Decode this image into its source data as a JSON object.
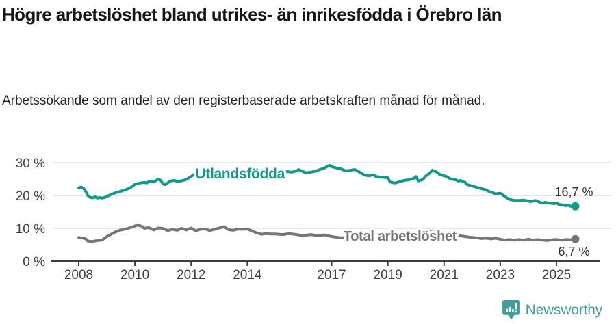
{
  "header": {
    "title": "Högre arbetslöshet bland utrikes- än inrikesfödda i Örebro län",
    "subtitle": "Arbetssökande som andel av den registerbaserade arbetskraften månad för månad."
  },
  "footer": {
    "brand": "Newsworthy"
  },
  "colors": {
    "accent_teal": "#10998b",
    "series_gray": "#74747b",
    "gridline": "#d9d9d9",
    "axis": "#3f3f3f",
    "tick_text": "#3f3f3f",
    "end_label_text": "#2e2e2e",
    "logo_teal": "#3f9e99"
  },
  "chart_data": {
    "type": "line",
    "title": "Högre arbetslöshet bland utrikes- än inrikesfödda i Örebro län",
    "subtitle": "Arbetssökande som andel av den registerbaserade arbetskraften månad för månad.",
    "xlabel": "",
    "ylabel": "",
    "xlim": [
      2007.05,
      2026.5
    ],
    "ylim": [
      0,
      30
    ],
    "grid": "horizontal",
    "legend_position": "inline-labels",
    "x_ticks": [
      2008,
      2010,
      2012,
      2014,
      2017,
      2019,
      2021,
      2023,
      2025
    ],
    "y_ticks": [
      0,
      10,
      20,
      30
    ],
    "y_tick_suffix": " %",
    "series": [
      {
        "name": "Utlandsfödda",
        "color": "#10998b",
        "end_label": "16,7 %",
        "end_value": 16.7,
        "label_pos": [
          2012.15,
          25.2
        ],
        "label_size": 21,
        "end_label_offset": [
          26,
          -15
        ],
        "points": [
          [
            2008.0,
            22.3
          ],
          [
            2008.08,
            22.6
          ],
          [
            2008.17,
            22.2
          ],
          [
            2008.25,
            21.2
          ],
          [
            2008.33,
            19.9
          ],
          [
            2008.42,
            19.4
          ],
          [
            2008.5,
            19.3
          ],
          [
            2008.58,
            19.6
          ],
          [
            2008.67,
            19.2
          ],
          [
            2008.75,
            19.4
          ],
          [
            2008.83,
            19.2
          ],
          [
            2008.92,
            19.4
          ],
          [
            2009.0,
            19.7
          ],
          [
            2009.17,
            20.4
          ],
          [
            2009.33,
            20.9
          ],
          [
            2009.5,
            21.3
          ],
          [
            2009.67,
            21.8
          ],
          [
            2009.83,
            22.3
          ],
          [
            2010.0,
            23.4
          ],
          [
            2010.17,
            23.8
          ],
          [
            2010.33,
            24.0
          ],
          [
            2010.42,
            23.8
          ],
          [
            2010.5,
            24.3
          ],
          [
            2010.67,
            24.1
          ],
          [
            2010.83,
            25.0
          ],
          [
            2010.92,
            24.6
          ],
          [
            2011.0,
            23.5
          ],
          [
            2011.08,
            23.3
          ],
          [
            2011.25,
            24.4
          ],
          [
            2011.42,
            24.6
          ],
          [
            2011.5,
            24.3
          ],
          [
            2011.67,
            24.5
          ],
          [
            2011.83,
            24.9
          ],
          [
            2011.92,
            25.4
          ],
          [
            2012.0,
            25.8
          ],
          [
            2012.08,
            26.3
          ],
          [
            2012.25,
            25.9
          ],
          [
            2012.42,
            26.2
          ],
          [
            2012.58,
            26.0
          ],
          [
            2012.75,
            26.3
          ],
          [
            2012.92,
            26.5
          ],
          [
            2013.08,
            26.3
          ],
          [
            2013.25,
            26.6
          ],
          [
            2013.42,
            26.9
          ],
          [
            2013.58,
            26.7
          ],
          [
            2013.75,
            27.0
          ],
          [
            2013.92,
            26.8
          ],
          [
            2014.08,
            27.0
          ],
          [
            2014.25,
            26.8
          ],
          [
            2014.42,
            27.1
          ],
          [
            2014.58,
            26.9
          ],
          [
            2014.75,
            27.2
          ],
          [
            2014.92,
            27.0
          ],
          [
            2015.08,
            27.2
          ],
          [
            2015.25,
            27.0
          ],
          [
            2015.42,
            27.3
          ],
          [
            2015.58,
            27.1
          ],
          [
            2015.75,
            27.5
          ],
          [
            2015.83,
            27.9
          ],
          [
            2016.0,
            27.2
          ],
          [
            2016.08,
            26.9
          ],
          [
            2016.25,
            27.1
          ],
          [
            2016.42,
            27.4
          ],
          [
            2016.58,
            27.9
          ],
          [
            2016.75,
            28.4
          ],
          [
            2016.92,
            29.2
          ],
          [
            2017.0,
            28.8
          ],
          [
            2017.17,
            28.4
          ],
          [
            2017.33,
            28.1
          ],
          [
            2017.5,
            27.5
          ],
          [
            2017.67,
            27.7
          ],
          [
            2017.83,
            27.9
          ],
          [
            2018.0,
            27.1
          ],
          [
            2018.17,
            26.2
          ],
          [
            2018.33,
            26.0
          ],
          [
            2018.5,
            26.3
          ],
          [
            2018.58,
            25.8
          ],
          [
            2018.75,
            25.6
          ],
          [
            2018.92,
            25.5
          ],
          [
            2019.0,
            25.4
          ],
          [
            2019.08,
            24.1
          ],
          [
            2019.25,
            23.8
          ],
          [
            2019.42,
            24.2
          ],
          [
            2019.58,
            24.6
          ],
          [
            2019.75,
            24.8
          ],
          [
            2019.92,
            25.2
          ],
          [
            2020.0,
            25.8
          ],
          [
            2020.08,
            24.4
          ],
          [
            2020.25,
            24.9
          ],
          [
            2020.33,
            25.8
          ],
          [
            2020.5,
            26.9
          ],
          [
            2020.58,
            27.7
          ],
          [
            2020.75,
            27.1
          ],
          [
            2020.83,
            26.5
          ],
          [
            2021.0,
            26.0
          ],
          [
            2021.08,
            25.8
          ],
          [
            2021.25,
            25.0
          ],
          [
            2021.42,
            24.8
          ],
          [
            2021.5,
            24.4
          ],
          [
            2021.58,
            24.6
          ],
          [
            2021.75,
            24.0
          ],
          [
            2021.83,
            23.3
          ],
          [
            2022.0,
            22.9
          ],
          [
            2022.08,
            22.7
          ],
          [
            2022.25,
            22.3
          ],
          [
            2022.42,
            21.9
          ],
          [
            2022.5,
            21.7
          ],
          [
            2022.58,
            21.3
          ],
          [
            2022.75,
            20.8
          ],
          [
            2022.83,
            20.5
          ],
          [
            2022.92,
            20.6
          ],
          [
            2023.0,
            20.7
          ],
          [
            2023.17,
            19.6
          ],
          [
            2023.33,
            18.8
          ],
          [
            2023.5,
            18.5
          ],
          [
            2023.67,
            18.5
          ],
          [
            2023.83,
            18.6
          ],
          [
            2024.0,
            18.3
          ],
          [
            2024.08,
            18.1
          ],
          [
            2024.25,
            18.5
          ],
          [
            2024.42,
            17.9
          ],
          [
            2024.5,
            17.7
          ],
          [
            2024.58,
            17.9
          ],
          [
            2024.75,
            17.7
          ],
          [
            2024.92,
            17.5
          ],
          [
            2025.0,
            17.7
          ],
          [
            2025.08,
            17.3
          ],
          [
            2025.25,
            17.1
          ],
          [
            2025.33,
            16.9
          ],
          [
            2025.42,
            17.1
          ],
          [
            2025.5,
            16.7
          ],
          [
            2025.67,
            16.7
          ]
        ]
      },
      {
        "name": "Total arbetslöshet",
        "color": "#74747b",
        "end_label": "6,7 %",
        "end_value": 6.7,
        "label_pos": [
          2017.42,
          6.25
        ],
        "label_size": 20,
        "end_label_offset": [
          21,
          24
        ],
        "points": [
          [
            2008.0,
            7.2
          ],
          [
            2008.08,
            7.1
          ],
          [
            2008.17,
            7.0
          ],
          [
            2008.25,
            6.8
          ],
          [
            2008.33,
            6.1
          ],
          [
            2008.5,
            6.0
          ],
          [
            2008.67,
            6.3
          ],
          [
            2008.83,
            6.4
          ],
          [
            2009.0,
            7.5
          ],
          [
            2009.17,
            8.3
          ],
          [
            2009.33,
            9.0
          ],
          [
            2009.5,
            9.5
          ],
          [
            2009.67,
            9.8
          ],
          [
            2009.83,
            10.2
          ],
          [
            2010.0,
            10.7
          ],
          [
            2010.08,
            11.0
          ],
          [
            2010.25,
            10.6
          ],
          [
            2010.33,
            10.0
          ],
          [
            2010.5,
            10.2
          ],
          [
            2010.67,
            9.5
          ],
          [
            2010.83,
            10.1
          ],
          [
            2011.0,
            10.0
          ],
          [
            2011.17,
            9.3
          ],
          [
            2011.33,
            9.7
          ],
          [
            2011.5,
            9.4
          ],
          [
            2011.67,
            10.0
          ],
          [
            2011.83,
            9.5
          ],
          [
            2012.0,
            10.1
          ],
          [
            2012.17,
            9.2
          ],
          [
            2012.33,
            9.7
          ],
          [
            2012.5,
            9.8
          ],
          [
            2012.67,
            9.3
          ],
          [
            2012.83,
            9.7
          ],
          [
            2013.0,
            10.1
          ],
          [
            2013.17,
            10.5
          ],
          [
            2013.33,
            9.6
          ],
          [
            2013.5,
            9.4
          ],
          [
            2013.67,
            9.8
          ],
          [
            2013.83,
            9.7
          ],
          [
            2014.0,
            9.8
          ],
          [
            2014.17,
            9.2
          ],
          [
            2014.33,
            8.6
          ],
          [
            2014.5,
            8.2
          ],
          [
            2014.67,
            8.4
          ],
          [
            2014.83,
            8.3
          ],
          [
            2015.0,
            8.3
          ],
          [
            2015.25,
            8.1
          ],
          [
            2015.5,
            8.4
          ],
          [
            2015.75,
            8.1
          ],
          [
            2016.0,
            7.8
          ],
          [
            2016.25,
            8.1
          ],
          [
            2016.5,
            7.8
          ],
          [
            2016.75,
            8.0
          ],
          [
            2017.0,
            7.5
          ],
          [
            2017.17,
            7.3
          ],
          [
            2017.33,
            7.1
          ],
          [
            2017.58,
            7.2
          ],
          [
            2017.83,
            7.4
          ],
          [
            2018.08,
            7.2
          ],
          [
            2018.5,
            7.0
          ],
          [
            2019.0,
            7.1
          ],
          [
            2019.5,
            7.3
          ],
          [
            2020.0,
            7.6
          ],
          [
            2020.42,
            9.0
          ],
          [
            2020.83,
            8.8
          ],
          [
            2021.25,
            8.2
          ],
          [
            2021.58,
            7.7
          ],
          [
            2021.92,
            7.3
          ],
          [
            2022.17,
            7.1
          ],
          [
            2022.33,
            6.9
          ],
          [
            2022.5,
            7.0
          ],
          [
            2022.67,
            6.8
          ],
          [
            2022.83,
            7.0
          ],
          [
            2023.0,
            6.7
          ],
          [
            2023.17,
            6.4
          ],
          [
            2023.33,
            6.6
          ],
          [
            2023.5,
            6.4
          ],
          [
            2023.67,
            6.6
          ],
          [
            2023.83,
            6.4
          ],
          [
            2024.0,
            6.7
          ],
          [
            2024.17,
            6.4
          ],
          [
            2024.33,
            6.6
          ],
          [
            2024.5,
            6.4
          ],
          [
            2024.67,
            6.3
          ],
          [
            2024.83,
            6.5
          ],
          [
            2025.0,
            6.6
          ],
          [
            2025.17,
            6.4
          ],
          [
            2025.33,
            6.6
          ],
          [
            2025.5,
            6.5
          ],
          [
            2025.67,
            6.7
          ]
        ]
      }
    ]
  }
}
